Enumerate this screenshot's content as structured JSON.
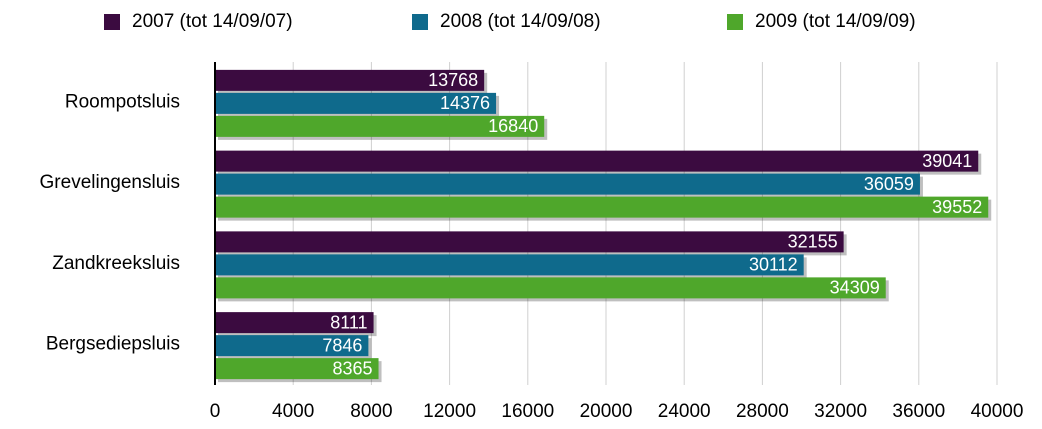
{
  "chart_data": {
    "type": "bar",
    "orientation": "horizontal",
    "categories": [
      "Roompotsluis",
      "Grevelingensluis",
      "Zandkreeksluis",
      "Bergsediepsluis"
    ],
    "series": [
      {
        "name": "2007 (tot 14/09/07)",
        "color": "#3b0b40",
        "values": [
          13768,
          39041,
          32155,
          8111
        ]
      },
      {
        "name": "2008 (tot 14/09/08)",
        "color": "#0f6a8c",
        "values": [
          14376,
          36059,
          30112,
          7846
        ]
      },
      {
        "name": "2009 (tot 14/09/09)",
        "color": "#4fa72b",
        "values": [
          16840,
          39552,
          34309,
          8365
        ]
      }
    ],
    "xlim": [
      0,
      40000
    ],
    "xticks": [
      0,
      4000,
      8000,
      12000,
      16000,
      20000,
      24000,
      28000,
      32000,
      36000,
      40000
    ],
    "grid": true,
    "legend": "top"
  }
}
